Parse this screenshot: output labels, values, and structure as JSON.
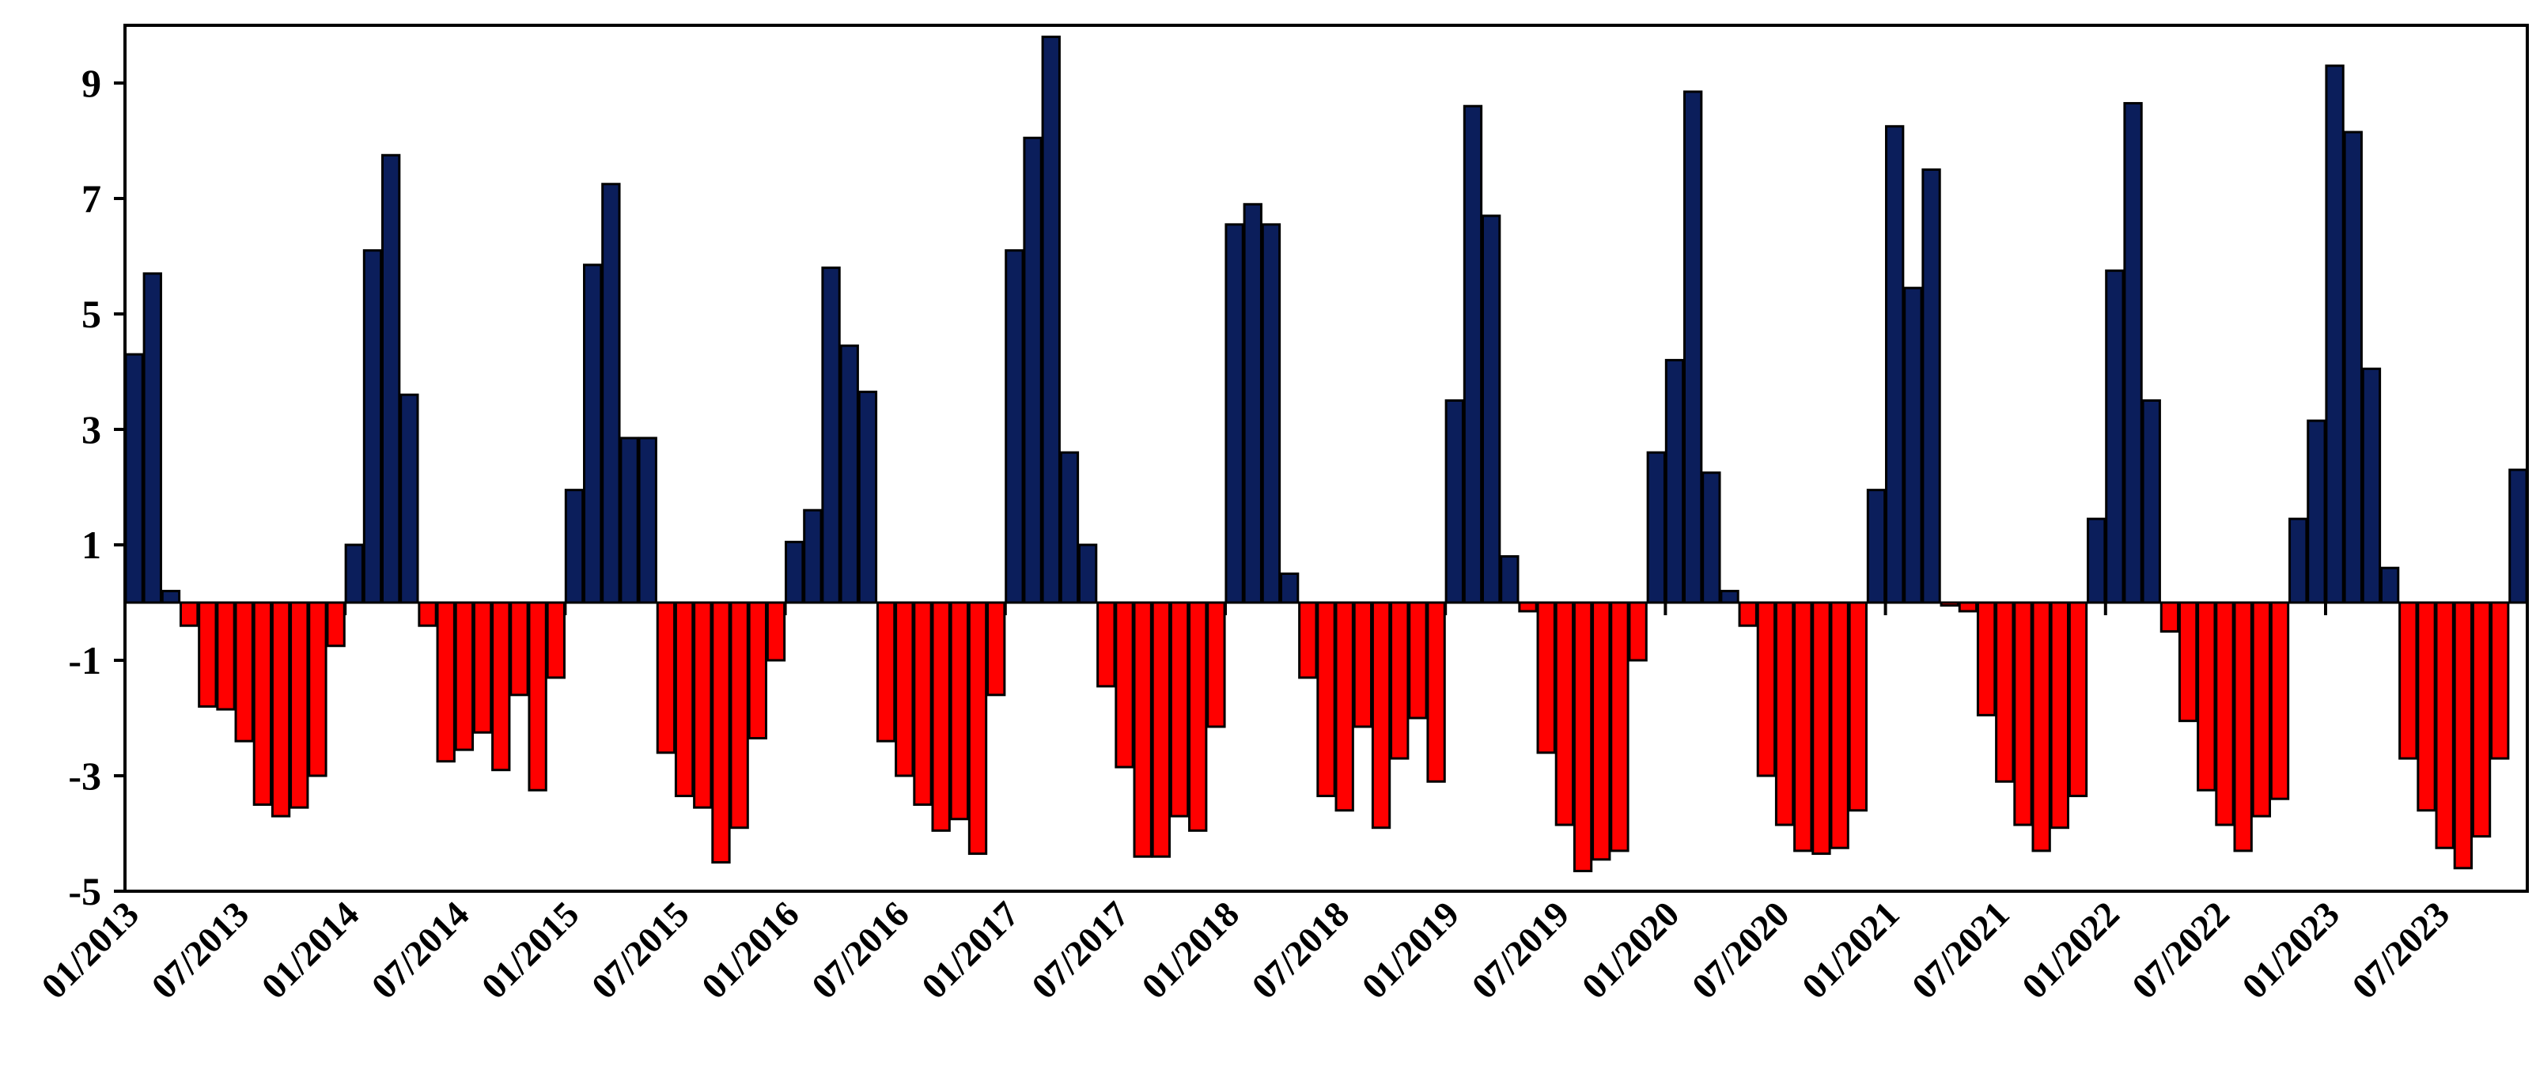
{
  "chart_data": {
    "type": "bar",
    "title": "",
    "xlabel": "",
    "ylabel": "",
    "ylim": [
      -5,
      10
    ],
    "y_ticks": [
      "9",
      "7",
      "5",
      "3",
      "1",
      "-1",
      "-3",
      "-5"
    ],
    "y_tick_values": [
      9,
      7,
      5,
      3,
      1,
      -1,
      -3,
      -5
    ],
    "x_tick_labels": [
      "01/2013",
      "07/2013",
      "01/2014",
      "07/2014",
      "01/2015",
      "07/2015",
      "01/2016",
      "07/2016",
      "01/2017",
      "07/2017",
      "01/2018",
      "07/2018",
      "01/2019",
      "07/2019",
      "01/2020",
      "07/2020",
      "01/2021",
      "07/2021",
      "01/2022",
      "07/2022",
      "01/2023",
      "07/2023"
    ],
    "x_tick_month_index": [
      0,
      6,
      12,
      18,
      24,
      30,
      36,
      42,
      48,
      54,
      60,
      66,
      72,
      78,
      84,
      90,
      96,
      102,
      108,
      114,
      120,
      126
    ],
    "start_month": "01/2013",
    "grid": false,
    "legend": "none",
    "colors": {
      "positive": "#0b1e5b",
      "negative": "#ff0000",
      "bar_edge": "#000000",
      "axis": "#000000"
    },
    "values": [
      4.3,
      5.7,
      0.2,
      -0.4,
      -1.8,
      -1.85,
      -2.4,
      -3.5,
      -3.7,
      -3.55,
      -3.0,
      -0.75,
      1.0,
      6.1,
      7.75,
      3.6,
      -0.4,
      -2.75,
      -2.55,
      -2.25,
      -2.9,
      -1.6,
      -3.25,
      -1.3,
      1.95,
      5.85,
      7.25,
      2.85,
      2.85,
      -2.6,
      -3.35,
      -3.55,
      -4.5,
      -3.9,
      -2.35,
      -1.0,
      1.05,
      1.6,
      5.8,
      4.45,
      3.65,
      -2.4,
      -3.0,
      -3.5,
      -3.95,
      -3.75,
      -4.35,
      -1.6,
      6.1,
      8.05,
      9.8,
      2.6,
      1.0,
      -1.45,
      -2.85,
      -4.4,
      -4.4,
      -3.7,
      -3.95,
      -2.15,
      6.55,
      6.9,
      6.55,
      0.5,
      -1.3,
      -3.35,
      -3.6,
      -2.15,
      -3.9,
      -2.7,
      -2.0,
      -3.1,
      3.5,
      8.6,
      6.7,
      0.8,
      -0.15,
      -2.6,
      -3.85,
      -4.65,
      -4.45,
      -4.3,
      -1.0,
      2.6,
      4.2,
      8.85,
      2.25,
      0.2,
      -0.4,
      -3.0,
      -3.85,
      -4.3,
      -4.35,
      -4.25,
      -3.6,
      1.95,
      8.25,
      5.45,
      7.5,
      -0.05,
      -0.15,
      -1.95,
      -3.1,
      -3.85,
      -4.3,
      -3.9,
      -3.35,
      1.45,
      5.75,
      8.65,
      3.5,
      -0.5,
      -2.05,
      -3.25,
      -3.85,
      -4.3,
      -3.7,
      -3.4,
      1.45,
      3.15,
      9.3,
      8.15,
      4.05,
      0.6,
      -2.7,
      -3.6,
      -4.25,
      -4.6,
      -4.05,
      -2.7,
      2.3
    ]
  }
}
